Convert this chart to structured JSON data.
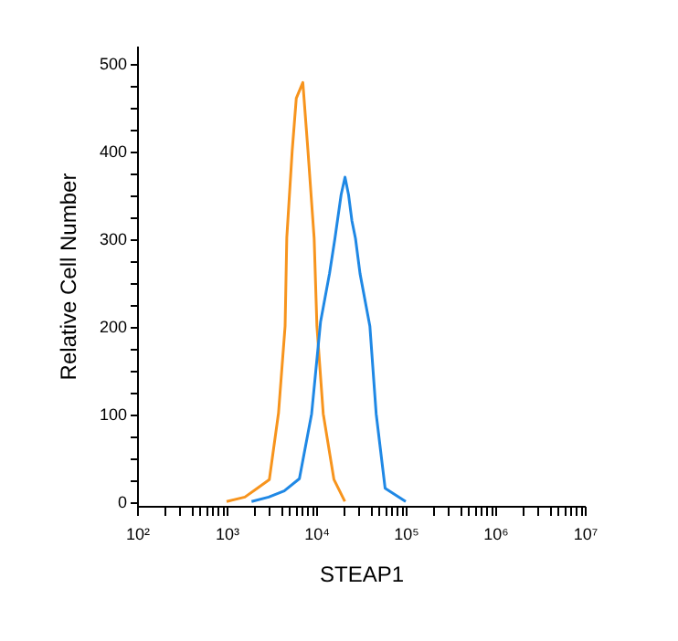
{
  "chart_data": {
    "type": "line",
    "xlabel": "STEAP1",
    "ylabel": "Relative Cell Number",
    "log": "x",
    "grid": false,
    "marker": "none",
    "line_style": "solid",
    "xlim": [
      100,
      10000000
    ],
    "ylim": [
      -5,
      520
    ],
    "xticks": [
      {
        "value": 100,
        "label": "10²"
      },
      {
        "value": 200,
        "label": null
      },
      {
        "value": 300,
        "label": null
      },
      {
        "value": 400,
        "label": null
      },
      {
        "value": 500,
        "label": null
      },
      {
        "value": 600,
        "label": null
      },
      {
        "value": 700,
        "label": null
      },
      {
        "value": 800,
        "label": null
      },
      {
        "value": 900,
        "label": null
      },
      {
        "value": 1000,
        "label": "10³"
      },
      {
        "value": 2000,
        "label": null
      },
      {
        "value": 3000,
        "label": null
      },
      {
        "value": 4000,
        "label": null
      },
      {
        "value": 5000,
        "label": null
      },
      {
        "value": 6000,
        "label": null
      },
      {
        "value": 7000,
        "label": null
      },
      {
        "value": 8000,
        "label": null
      },
      {
        "value": 9000,
        "label": null
      },
      {
        "value": 10000,
        "label": "10⁴"
      },
      {
        "value": 20000,
        "label": null
      },
      {
        "value": 30000,
        "label": null
      },
      {
        "value": 40000,
        "label": null
      },
      {
        "value": 50000,
        "label": null
      },
      {
        "value": 60000,
        "label": null
      },
      {
        "value": 70000,
        "label": null
      },
      {
        "value": 80000,
        "label": null
      },
      {
        "value": 90000,
        "label": null
      },
      {
        "value": 100000,
        "label": "10⁵"
      },
      {
        "value": 200000,
        "label": null
      },
      {
        "value": 300000,
        "label": null
      },
      {
        "value": 400000,
        "label": null
      },
      {
        "value": 500000,
        "label": null
      },
      {
        "value": 600000,
        "label": null
      },
      {
        "value": 700000,
        "label": null
      },
      {
        "value": 800000,
        "label": null
      },
      {
        "value": 900000,
        "label": null
      },
      {
        "value": 1000000,
        "label": "10⁶"
      },
      {
        "value": 2000000,
        "label": null
      },
      {
        "value": 3000000,
        "label": null
      },
      {
        "value": 4000000,
        "label": null
      },
      {
        "value": 5000000,
        "label": null
      },
      {
        "value": 6000000,
        "label": null
      },
      {
        "value": 7000000,
        "label": null
      },
      {
        "value": 8000000,
        "label": null
      },
      {
        "value": 9000000,
        "label": null
      },
      {
        "value": 10000000,
        "label": "10⁷"
      }
    ],
    "yticks": [
      0,
      {
        "value": 25,
        "label": null
      },
      {
        "value": 50,
        "label": null
      },
      {
        "value": 75,
        "label": null
      },
      100,
      {
        "value": 125,
        "label": null
      },
      {
        "value": 150,
        "label": null
      },
      {
        "value": 175,
        "label": null
      },
      200,
      {
        "value": 225,
        "label": null
      },
      {
        "value": 250,
        "label": null
      },
      {
        "value": 275,
        "label": null
      },
      300,
      {
        "value": 325,
        "label": null
      },
      {
        "value": 350,
        "label": null
      },
      {
        "value": 375,
        "label": null
      },
      400,
      {
        "value": 425,
        "label": null
      },
      {
        "value": 450,
        "label": null
      },
      {
        "value": 475,
        "label": null
      },
      500
    ],
    "series": [
      {
        "color": "#f7941d",
        "x": [
          1000,
          1600,
          2200,
          3000,
          3800,
          4500,
          4700,
          5400,
          6000,
          7100,
          8100,
          9500,
          10200,
          12000,
          15800,
          20900
        ],
        "values": [
          0,
          5,
          15,
          25,
          101,
          200,
          301,
          400,
          460,
          478,
          400,
          300,
          200,
          100,
          25,
          0
        ]
      },
      {
        "color": "#1f88e5",
        "x": [
          1900,
          2950,
          4400,
          6500,
          8900,
          11200,
          14100,
          16200,
          19000,
          21000,
          23000,
          25100,
          27500,
          30900,
          39800,
          46800,
          58900,
          100000
        ],
        "values": [
          0,
          5,
          12,
          26,
          100,
          205,
          260,
          300,
          350,
          370,
          350,
          320,
          300,
          260,
          200,
          100,
          15,
          0
        ]
      }
    ]
  }
}
